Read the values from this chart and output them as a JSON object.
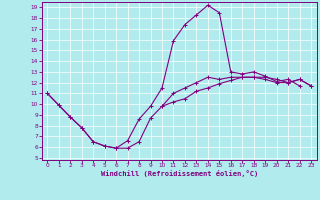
{
  "xlabel": "Windchill (Refroidissement éolien,°C)",
  "bg_color": "#b2ebee",
  "line_color": "#800080",
  "grid_color": "#ffffff",
  "x_hours": [
    0,
    1,
    2,
    3,
    4,
    5,
    6,
    7,
    8,
    9,
    10,
    11,
    12,
    13,
    14,
    15,
    16,
    17,
    18,
    19,
    20,
    21,
    22,
    23
  ],
  "line1_y": [
    11.0,
    9.9,
    8.8,
    7.8,
    6.5,
    6.1,
    5.9,
    5.9,
    6.5,
    8.7,
    9.8,
    10.2,
    10.5,
    11.2,
    11.5,
    11.9,
    12.2,
    12.5,
    12.5,
    12.5,
    12.3,
    12.0,
    12.3,
    11.7
  ],
  "line2_y": [
    11.0,
    9.9,
    8.8,
    7.8,
    6.5,
    6.1,
    5.9,
    6.6,
    8.6,
    9.8,
    11.5,
    15.9,
    17.4,
    18.3,
    19.2,
    18.5,
    13.0,
    12.8,
    13.0,
    12.6,
    12.1,
    12.3,
    11.7,
    null
  ],
  "line3_y": [
    null,
    null,
    null,
    null,
    null,
    null,
    null,
    null,
    null,
    null,
    9.8,
    11.0,
    11.5,
    12.0,
    12.5,
    12.3,
    12.5,
    12.5,
    12.5,
    12.3,
    12.0,
    12.0,
    12.3,
    11.7
  ],
  "ylim": [
    5,
    19
  ],
  "yticks": [
    5,
    6,
    7,
    8,
    9,
    10,
    11,
    12,
    13,
    14,
    15,
    16,
    17,
    18,
    19
  ],
  "xlim": [
    0,
    23
  ],
  "xticks": [
    0,
    1,
    2,
    3,
    4,
    5,
    6,
    7,
    8,
    9,
    10,
    11,
    12,
    13,
    14,
    15,
    16,
    17,
    18,
    19,
    20,
    21,
    22,
    23
  ]
}
